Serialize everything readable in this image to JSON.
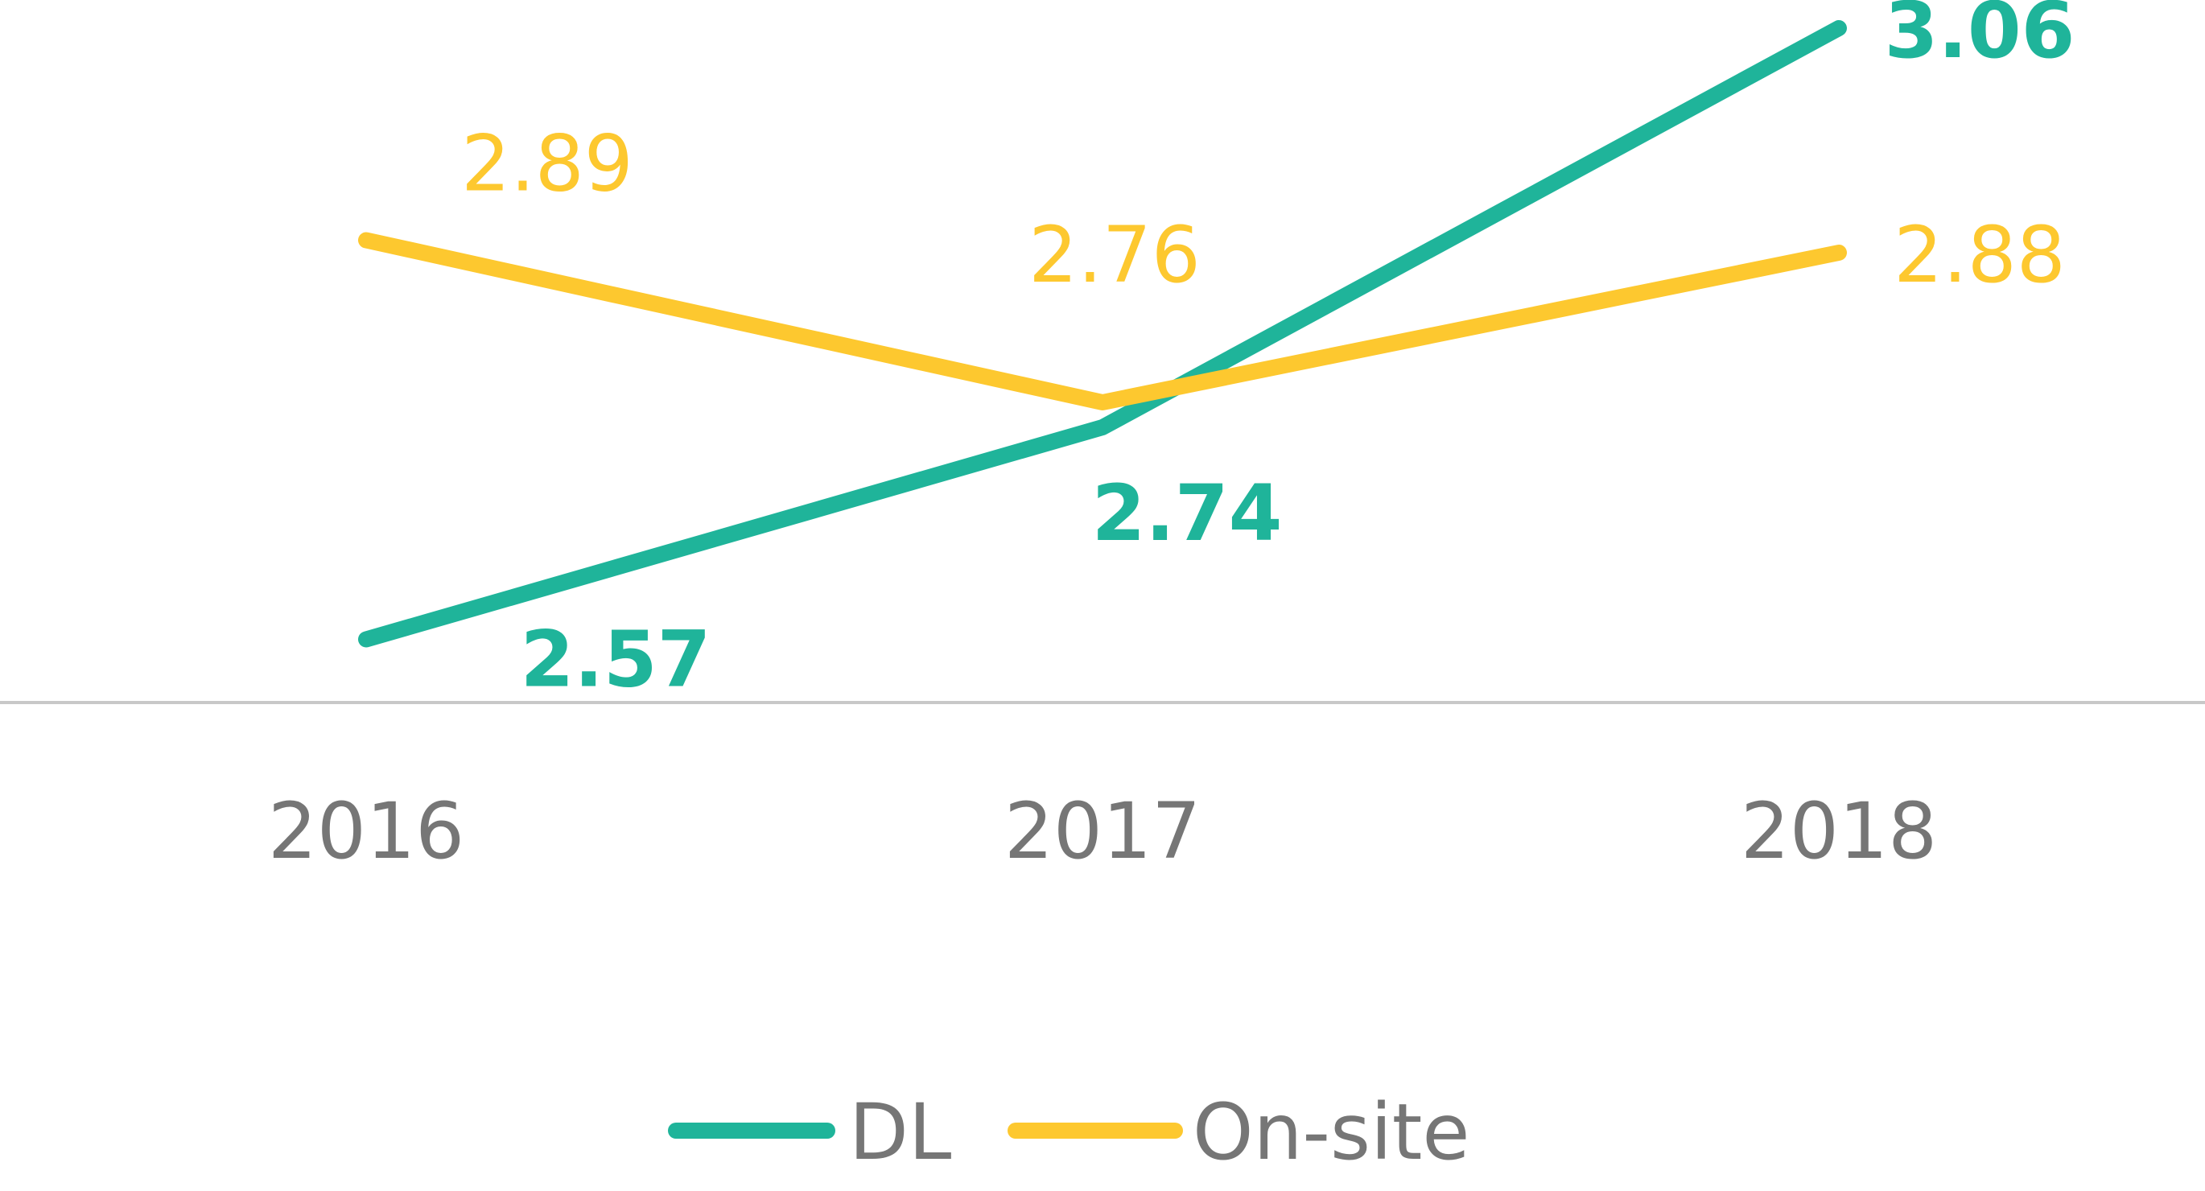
{
  "chart_data": {
    "type": "line",
    "categories": [
      "2016",
      "2017",
      "2018"
    ],
    "series": [
      {
        "name": "DL",
        "values": [
          2.57,
          2.74,
          3.06
        ],
        "value_labels": [
          "2.57",
          "2.74",
          "3.06"
        ],
        "color": "#1fb49a",
        "label_weight": "bold",
        "label_position": [
          "below-right",
          "below",
          "right"
        ]
      },
      {
        "name": "On-site",
        "values": [
          2.89,
          2.76,
          2.88
        ],
        "value_labels": [
          "2.89",
          "2.76",
          "2.88"
        ],
        "color": "#fdc82f",
        "label_weight": "normal",
        "label_position": [
          "above-right",
          "above",
          "right"
        ]
      }
    ],
    "title": "",
    "xlabel": "",
    "ylabel": "",
    "ylim": [
      2.5,
      3.1
    ],
    "grid": false,
    "legend": "bottom",
    "axis_color": "#c8c8c8",
    "text_color": "#767676"
  }
}
